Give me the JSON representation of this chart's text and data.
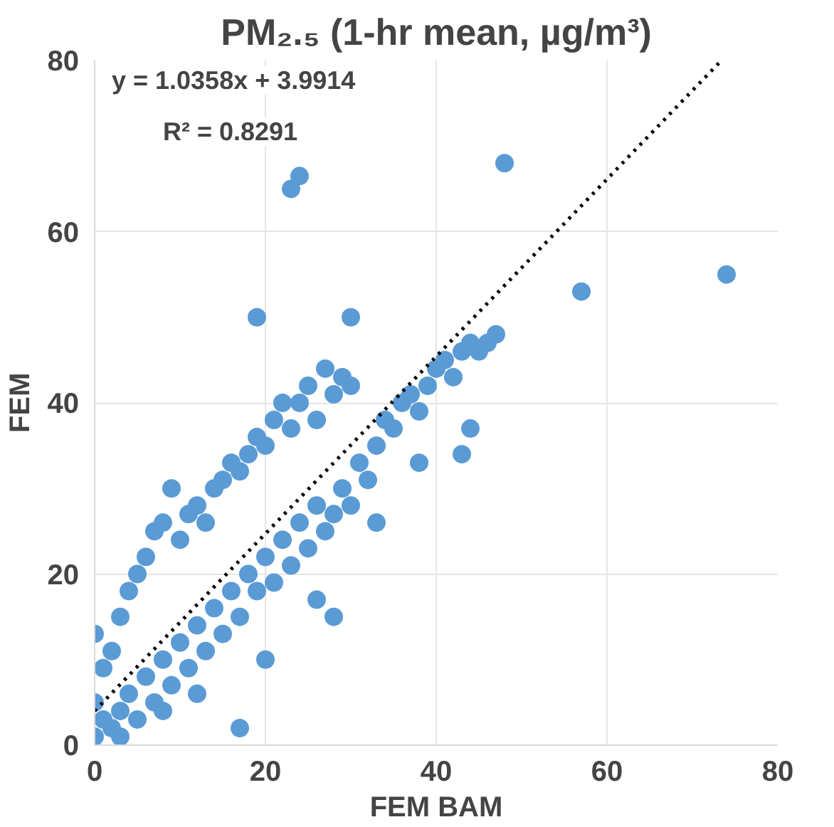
{
  "chart_data": {
    "type": "scatter",
    "title": "PM₂.₅ (1-hr mean, µg/m³)",
    "xlabel": "FEM BAM",
    "ylabel": "FEM",
    "xlim": [
      0,
      80
    ],
    "ylim": [
      0,
      80
    ],
    "xticks": [
      0,
      20,
      40,
      60,
      80
    ],
    "yticks": [
      0,
      20,
      40,
      60,
      80
    ],
    "grid": true,
    "annotations": [
      "y = 1.0358x + 3.9914",
      "R² = 0.8291"
    ],
    "series": [
      {
        "color": "#5b9bd5",
        "marker": "circle",
        "x": [
          0,
          0,
          0,
          1,
          1,
          2,
          2,
          3,
          3,
          4,
          4,
          5,
          5,
          6,
          6,
          7,
          7,
          8,
          8,
          9,
          9,
          10,
          10,
          11,
          11,
          12,
          12,
          13,
          13,
          14,
          14,
          15,
          15,
          16,
          16,
          17,
          17,
          18,
          18,
          19,
          19,
          20,
          20,
          21,
          21,
          22,
          22,
          23,
          23,
          24,
          24,
          25,
          25,
          26,
          26,
          27,
          27,
          28,
          28,
          29,
          29,
          30,
          30,
          31,
          32,
          33,
          34,
          35,
          36,
          37,
          38,
          39,
          40,
          41,
          42,
          43,
          44,
          45,
          46,
          47,
          23,
          24,
          48,
          57,
          74,
          19,
          30,
          17,
          28,
          20,
          43,
          44,
          8,
          3,
          12,
          26,
          33,
          38
        ],
        "values": [
          1,
          5,
          13,
          3,
          9,
          2,
          11,
          4,
          15,
          6,
          18,
          3,
          20,
          8,
          22,
          5,
          25,
          10,
          26,
          7,
          30,
          12,
          24,
          9,
          27,
          14,
          28,
          11,
          26,
          16,
          30,
          13,
          31,
          18,
          33,
          15,
          32,
          20,
          34,
          18,
          36,
          22,
          35,
          19,
          38,
          24,
          40,
          21,
          37,
          26,
          40,
          23,
          42,
          28,
          38,
          25,
          44,
          27,
          41,
          30,
          43,
          28,
          42,
          33,
          31,
          35,
          38,
          37,
          40,
          41,
          39,
          42,
          44,
          45,
          43,
          46,
          47,
          46,
          47,
          48,
          65,
          66.5,
          68,
          53,
          55,
          50,
          50,
          2,
          15,
          10,
          34,
          37,
          4,
          1,
          6,
          17,
          26,
          33
        ]
      },
      {
        "type": "line",
        "color": "#000000",
        "line_style": "dotted",
        "marker": "none",
        "x": [
          0,
          73.2
        ],
        "values": [
          4,
          79.8
        ]
      }
    ]
  }
}
